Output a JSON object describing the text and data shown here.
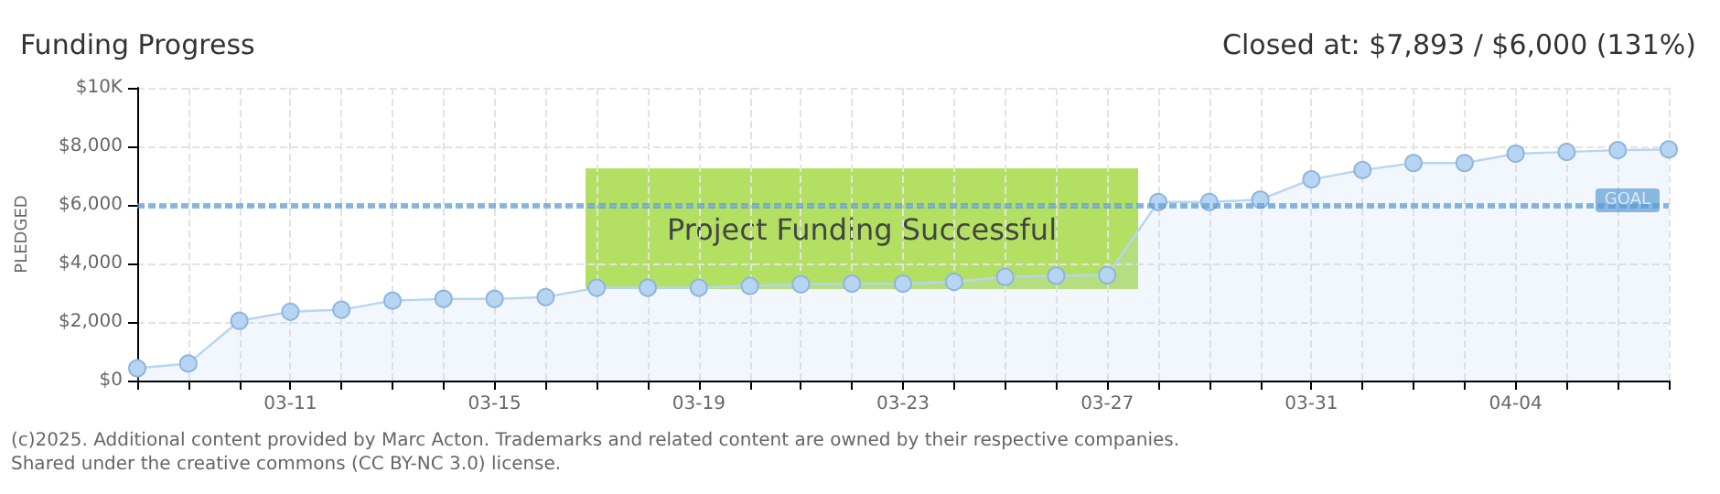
{
  "chart_data": {
    "type": "area",
    "title": "Funding Progress",
    "subtitle": "Closed at: $7,893 / $6,000 (131%)",
    "ylabel": "PLEDGED",
    "categories": [
      null,
      null,
      null,
      "03-11",
      null,
      null,
      null,
      "03-15",
      null,
      null,
      null,
      "03-19",
      null,
      null,
      null,
      "03-23",
      null,
      null,
      null,
      "03-27",
      null,
      null,
      null,
      "03-31",
      null,
      null,
      null,
      "04-04",
      null,
      null,
      null
    ],
    "series": [
      {
        "color": "#b7d5f3",
        "values": [
          420,
          580,
          2040,
          2350,
          2420,
          2730,
          2790,
          2790,
          2850,
          3170,
          3170,
          3170,
          3230,
          3290,
          3310,
          3310,
          3370,
          3540,
          3580,
          3600,
          6100,
          6100,
          6180,
          6870,
          7190,
          7430,
          7430,
          7750,
          7810,
          7870,
          7893
        ]
      }
    ],
    "ylim": [
      0,
      10000
    ],
    "yticks": [
      {
        "value": 0,
        "label": "$0"
      },
      {
        "value": 2000,
        "label": "$2,000"
      },
      {
        "value": 4000,
        "label": "$4,000"
      },
      {
        "value": 6000,
        "label": "$6,000"
      },
      {
        "value": 8000,
        "label": "$8,000"
      },
      {
        "value": 10000,
        "label": "$10K"
      }
    ],
    "ref_lines": [
      {
        "axis": "y",
        "value": 6000,
        "label": "GOAL",
        "color": "#5b9bd5",
        "line_style": "dotted"
      }
    ],
    "annotations": [
      "Project Funding Successful",
      "(c)2025. Additional content provided by Marc Acton. Trademarks and related content are owned by their respective companies.",
      "Shared under the creative commons (CC BY-NC 3.0) license."
    ],
    "grid": true,
    "marker": "circle"
  }
}
